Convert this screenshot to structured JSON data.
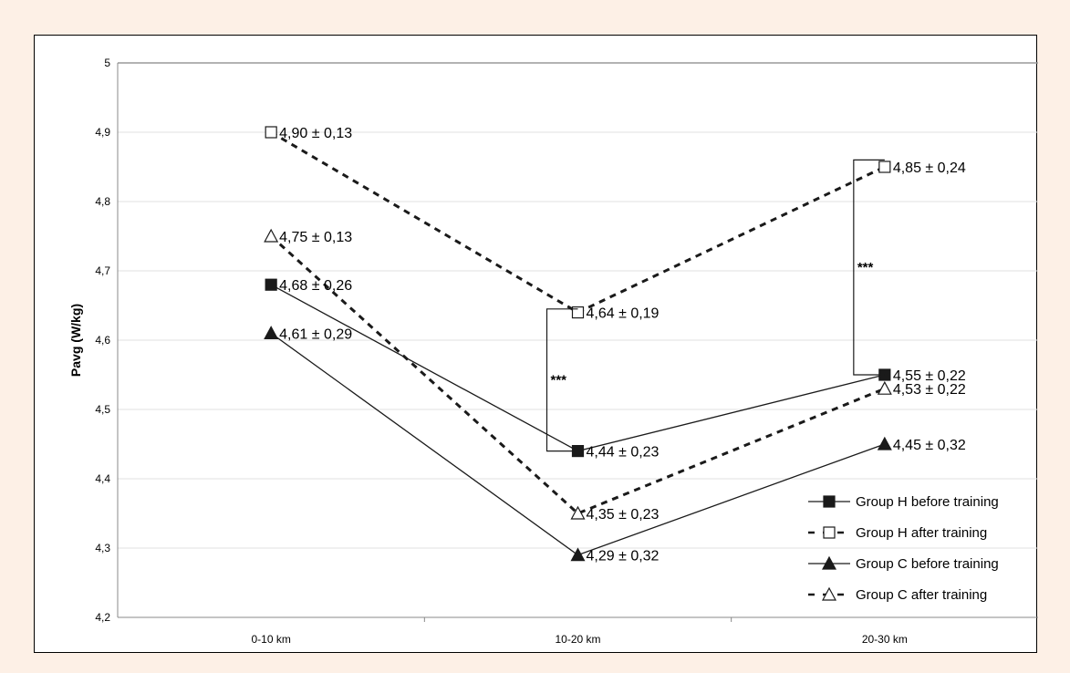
{
  "chart_data": {
    "type": "line",
    "ylabel": "Pavg (W/kg)",
    "xlabel": "",
    "categories": [
      "0-10 km",
      "10-20 km",
      "20-30 km"
    ],
    "ylim": [
      4.2,
      5.0
    ],
    "yticks": [
      "4,2",
      "4,3",
      "4,4",
      "4,5",
      "4,6",
      "4,7",
      "4,8",
      "4,9",
      "5"
    ],
    "series": [
      {
        "name": "Group H before training",
        "values": [
          4.68,
          4.44,
          4.55
        ],
        "labels": [
          "4,68 ± 0,26",
          "4,44 ± 0,23",
          "4,55 ± 0,22"
        ],
        "marker": "square-filled",
        "line": "solid"
      },
      {
        "name": "Group H after training",
        "values": [
          4.9,
          4.64,
          4.85
        ],
        "labels": [
          "4,90 ± 0,13",
          "4,64 ± 0,19",
          "4,85 ± 0,24"
        ],
        "marker": "square-open",
        "line": "dashed"
      },
      {
        "name": "Group C before training",
        "values": [
          4.61,
          4.29,
          4.45
        ],
        "labels": [
          "4,61 ± 0,29",
          "4,29 ± 0,32",
          "4,45 ± 0,32"
        ],
        "marker": "triangle-filled",
        "line": "solid"
      },
      {
        "name": "Group C after training",
        "values": [
          4.75,
          4.35,
          4.53
        ],
        "labels": [
          "4,75 ± 0,13",
          "4,35 ± 0,23",
          "4,53 ± 0,22"
        ],
        "marker": "triangle-open",
        "line": "dashed"
      }
    ],
    "annotations": [
      {
        "text": "***",
        "category": "10-20 km",
        "from": 4.44,
        "to": 4.645
      },
      {
        "text": "***",
        "category": "20-30 km",
        "from": 4.55,
        "to": 4.86
      }
    ],
    "grid": true,
    "legend": "bottom-right"
  }
}
